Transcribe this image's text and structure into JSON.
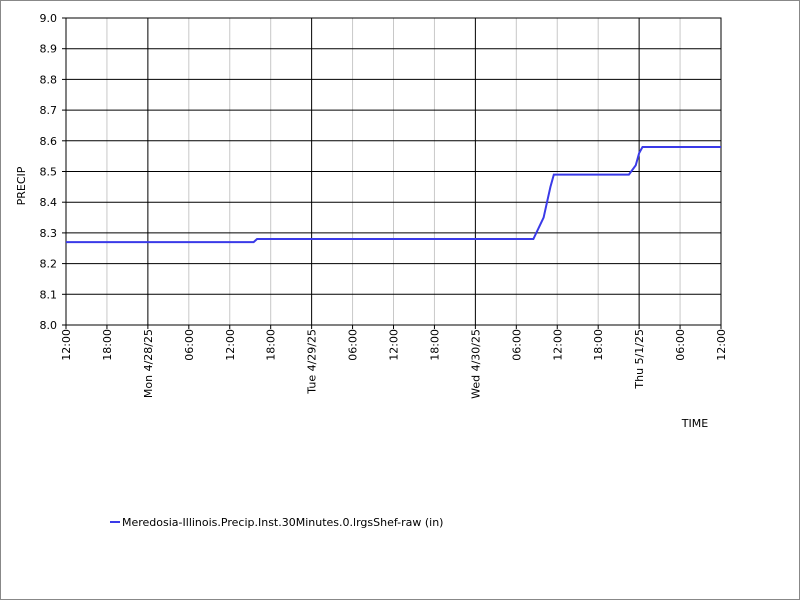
{
  "chart_data": {
    "type": "line",
    "x_label": "TIME",
    "y_label": "PRECIP",
    "x": [
      "2025-04-27T12:00",
      "2025-04-28T15:30",
      "2025-04-28T16:00",
      "2025-04-30T08:30",
      "2025-04-30T10:00",
      "2025-04-30T10:30",
      "2025-04-30T11:00",
      "2025-04-30T11:30",
      "2025-04-30T22:30",
      "2025-04-30T23:30",
      "2025-05-01T00:00",
      "2025-05-01T00:30",
      "2025-05-01T12:00"
    ],
    "series": [
      {
        "name": "Meredosia-Illinois.Precip.Inst.30Minutes.0.lrgsShef-raw (in)",
        "color": "#3a3ae8",
        "values": [
          8.27,
          8.27,
          8.28,
          8.28,
          8.35,
          8.4,
          8.45,
          8.49,
          8.49,
          8.52,
          8.56,
          8.58,
          8.58
        ]
      }
    ],
    "xlim": [
      "2025-04-27T12:00",
      "2025-05-01T12:00"
    ],
    "xticks": [
      {
        "value": "2025-04-27T12:00",
        "label": "12:00"
      },
      {
        "value": "2025-04-27T18:00",
        "label": "18:00"
      },
      {
        "value": "2025-04-28T00:00",
        "label": "Mon 4/28/25"
      },
      {
        "value": "2025-04-28T06:00",
        "label": "06:00"
      },
      {
        "value": "2025-04-28T12:00",
        "label": "12:00"
      },
      {
        "value": "2025-04-28T18:00",
        "label": "18:00"
      },
      {
        "value": "2025-04-29T00:00",
        "label": "Tue 4/29/25"
      },
      {
        "value": "2025-04-29T06:00",
        "label": "06:00"
      },
      {
        "value": "2025-04-29T12:00",
        "label": "12:00"
      },
      {
        "value": "2025-04-29T18:00",
        "label": "18:00"
      },
      {
        "value": "2025-04-30T00:00",
        "label": "Wed 4/30/25"
      },
      {
        "value": "2025-04-30T06:00",
        "label": "06:00"
      },
      {
        "value": "2025-04-30T12:00",
        "label": "12:00"
      },
      {
        "value": "2025-04-30T18:00",
        "label": "18:00"
      },
      {
        "value": "2025-05-01T00:00",
        "label": "Thu 5/1/25"
      },
      {
        "value": "2025-05-01T06:00",
        "label": "06:00"
      },
      {
        "value": "2025-05-01T12:00",
        "label": "12:00"
      }
    ],
    "ylim": [
      8.0,
      9.0
    ],
    "yticks": [
      {
        "value": 8.0,
        "label": "8.0"
      },
      8.1,
      8.2,
      8.3,
      8.4,
      8.5,
      8.6,
      8.7,
      8.8,
      8.9,
      {
        "value": 9.0,
        "label": "9.0"
      }
    ],
    "grid": true
  }
}
